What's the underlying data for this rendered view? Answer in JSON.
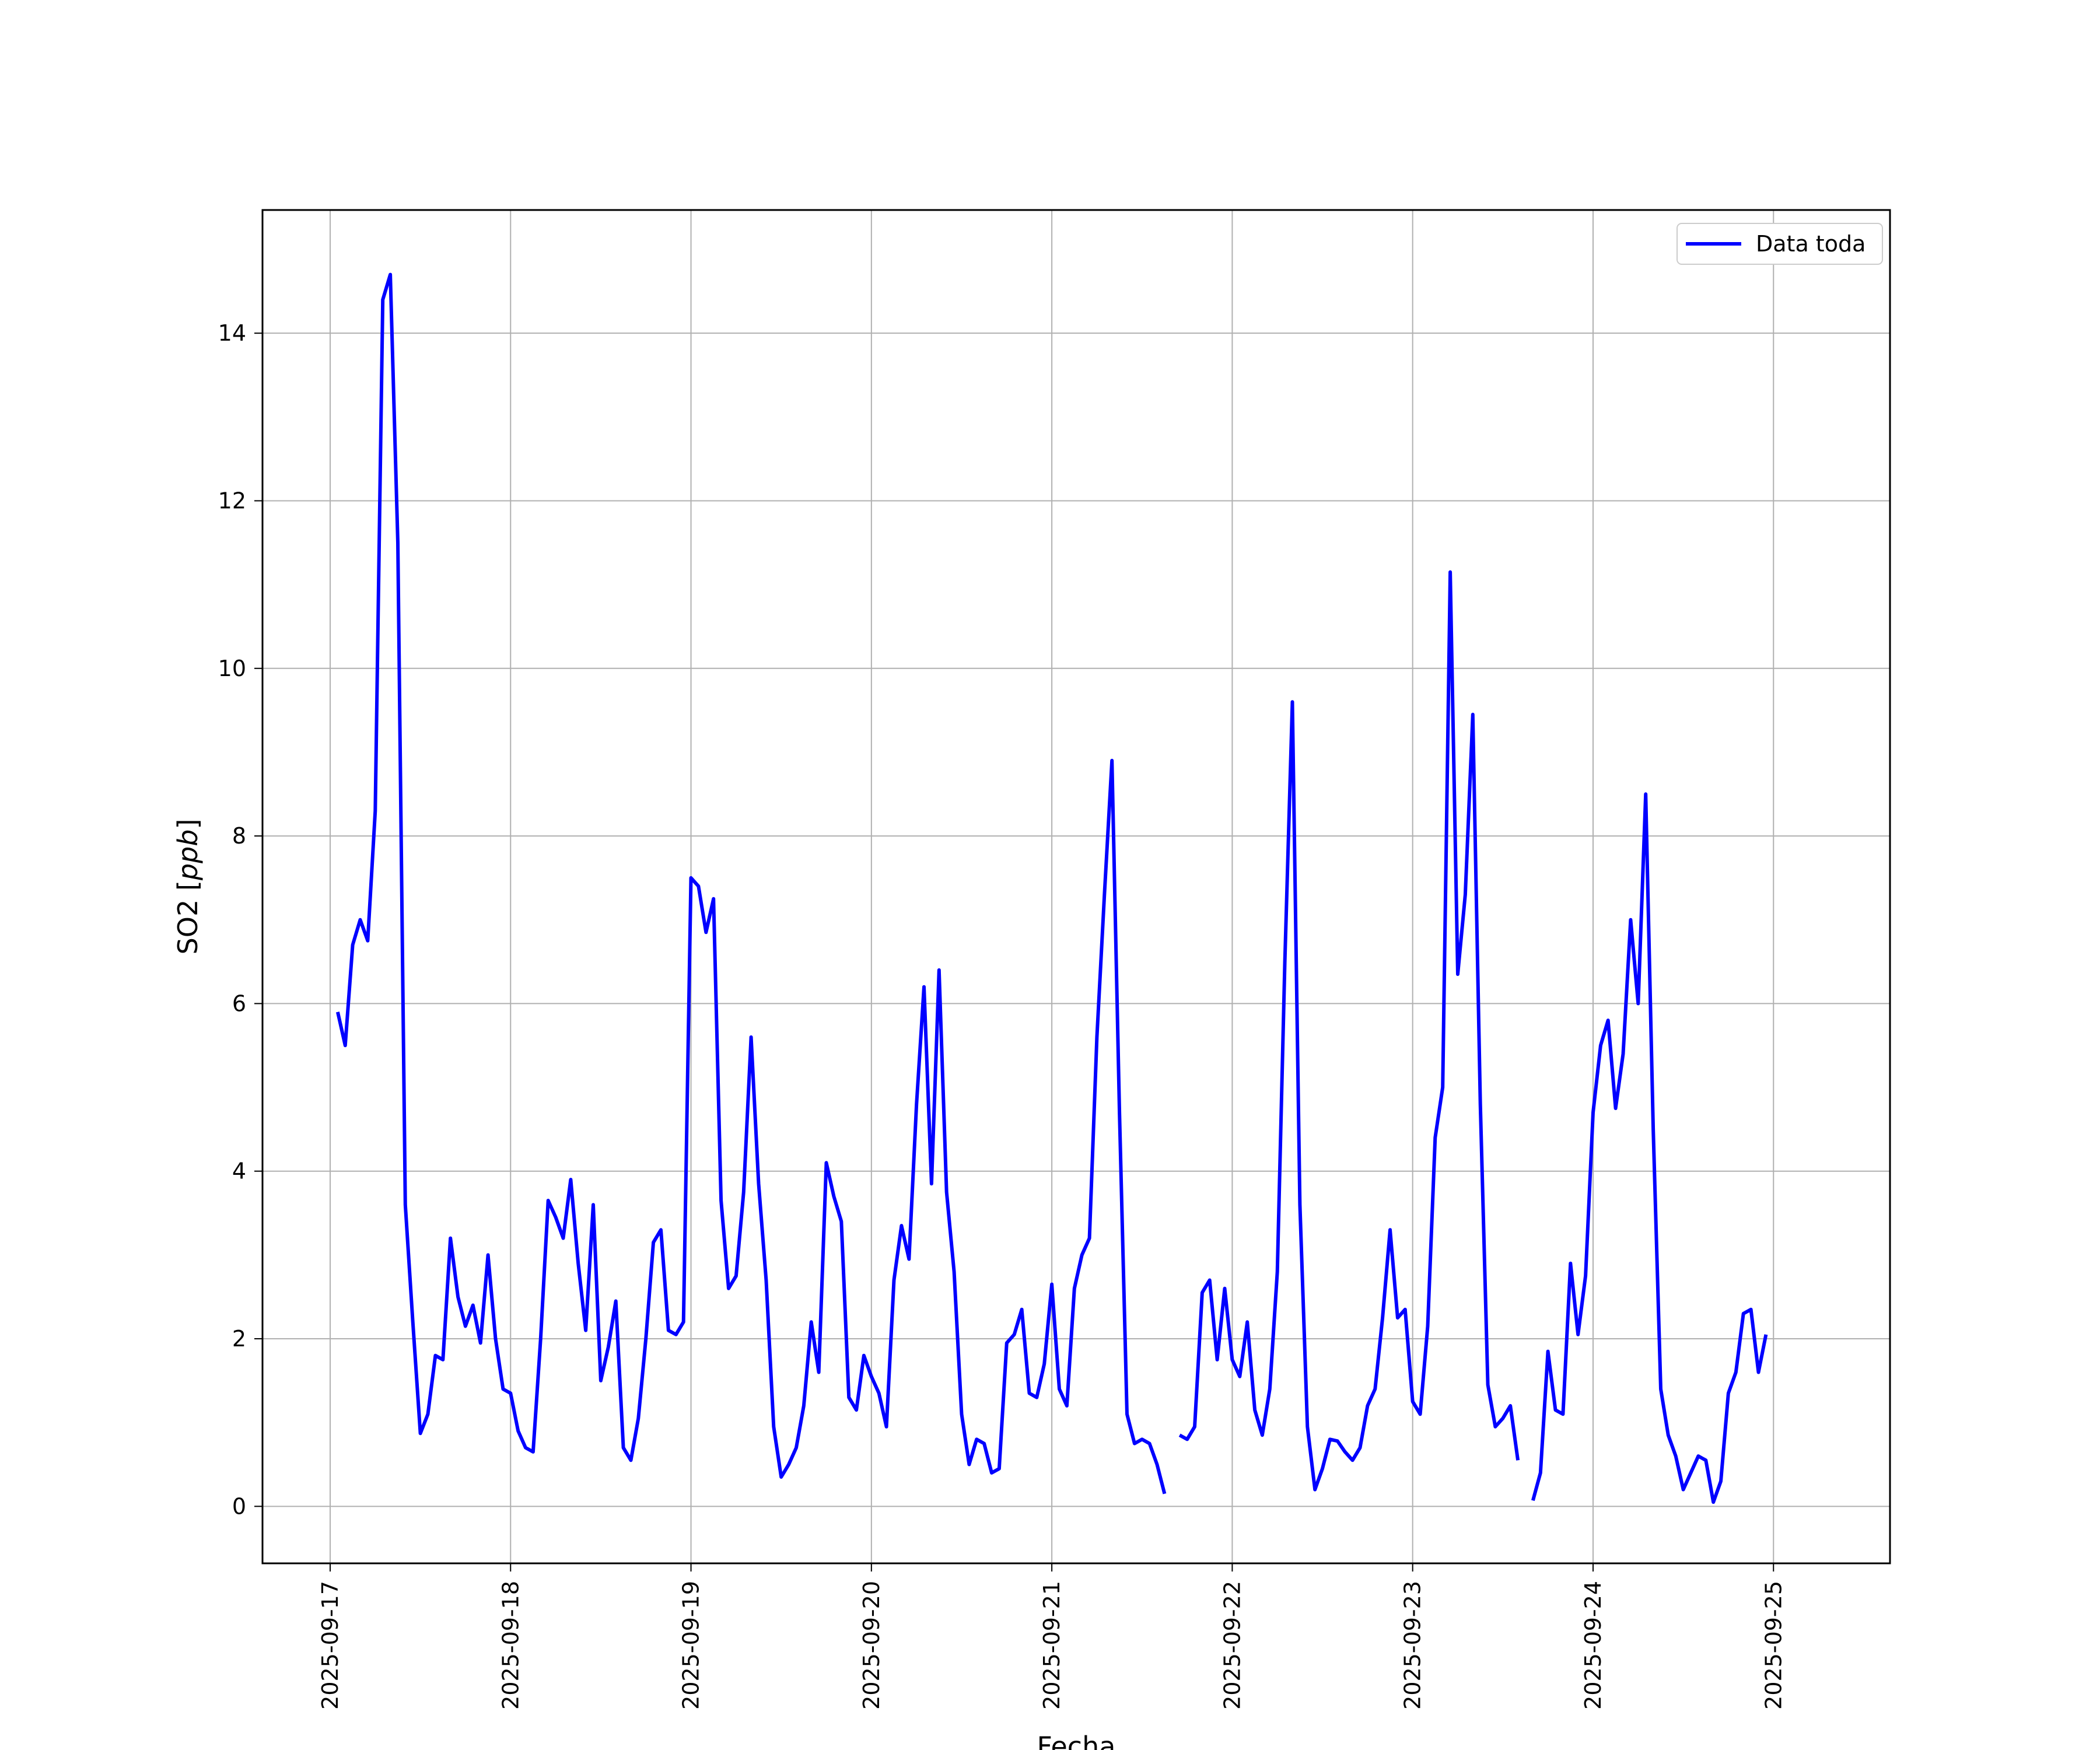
{
  "chart_data": {
    "type": "line",
    "title": "",
    "xlabel": "Fecha",
    "ylabel_main": "SO2",
    "ylabel_unit": "ppb",
    "x_ticks": [
      "2025-09-17",
      "2025-09-18",
      "2025-09-19",
      "2025-09-20",
      "2025-09-21",
      "2025-09-22",
      "2025-09-23",
      "2025-09-24",
      "2025-09-25"
    ],
    "y_ticks": [
      "0",
      "2",
      "4",
      "6",
      "8",
      "10",
      "12",
      "14"
    ],
    "xlim": [
      "2025-09-16T15:00",
      "2025-09-25T15:30"
    ],
    "ylim": [
      -0.68,
      15.47
    ],
    "grid": true,
    "legend": "top-right",
    "series": [
      {
        "name": "Data toda",
        "color": "#0000ff",
        "time_step_hours": 1,
        "start": "2025-09-17T01:00",
        "values": [
          5.9,
          5.5,
          6.7,
          7.0,
          6.75,
          8.3,
          14.4,
          14.7,
          11.5,
          3.6,
          2.2,
          0.87,
          1.1,
          1.8,
          1.75,
          3.2,
          2.5,
          2.15,
          2.4,
          1.95,
          3.0,
          2.0,
          1.4,
          1.35,
          0.9,
          0.7,
          0.65,
          2.0,
          3.65,
          3.45,
          3.2,
          3.9,
          2.9,
          2.1,
          3.6,
          1.5,
          1.9,
          2.45,
          0.7,
          0.55,
          1.05,
          2.0,
          3.15,
          3.3,
          2.1,
          2.05,
          2.2,
          7.5,
          7.4,
          6.85,
          7.25,
          3.65,
          2.6,
          2.75,
          3.75,
          5.6,
          3.85,
          2.7,
          0.95,
          0.35,
          0.5,
          0.7,
          1.2,
          2.2,
          1.6,
          4.1,
          3.7,
          3.4,
          1.3,
          1.15,
          1.8,
          1.55,
          1.35,
          0.95,
          2.7,
          3.35,
          2.95,
          4.8,
          6.2,
          3.85,
          6.4,
          3.75,
          2.8,
          1.1,
          0.5,
          0.8,
          0.75,
          0.4,
          0.45,
          1.95,
          2.05,
          2.35,
          1.35,
          1.3,
          1.7,
          2.65,
          1.4,
          1.2,
          2.6,
          3.0,
          3.2,
          5.6,
          7.3,
          8.9,
          4.7,
          1.1,
          0.75,
          0.8,
          0.75,
          0.5,
          0.15,
          null,
          0.85,
          0.8,
          0.95,
          2.55,
          2.7,
          1.75,
          2.6,
          1.75,
          1.55,
          2.2,
          1.15,
          0.85,
          1.4,
          2.8,
          6.5,
          9.6,
          3.6,
          0.95,
          0.2,
          0.45,
          0.8,
          0.78,
          0.65,
          0.55,
          0.7,
          1.2,
          1.4,
          2.25,
          3.3,
          2.25,
          2.35,
          1.25,
          1.1,
          2.15,
          4.4,
          5.0,
          11.15,
          6.35,
          7.3,
          9.45,
          4.8,
          1.45,
          0.95,
          1.05,
          1.2,
          0.55,
          null,
          0.07,
          0.4,
          1.85,
          1.15,
          1.1,
          2.9,
          2.05,
          2.75,
          4.7,
          5.5,
          5.8,
          4.75,
          5.4,
          7.0,
          6.0,
          8.5,
          4.5,
          1.4,
          0.85,
          0.6,
          0.2,
          0.4,
          0.6,
          0.55,
          0.05,
          0.3,
          1.35,
          1.6,
          2.3,
          2.35,
          1.6,
          2.05
        ]
      }
    ]
  }
}
